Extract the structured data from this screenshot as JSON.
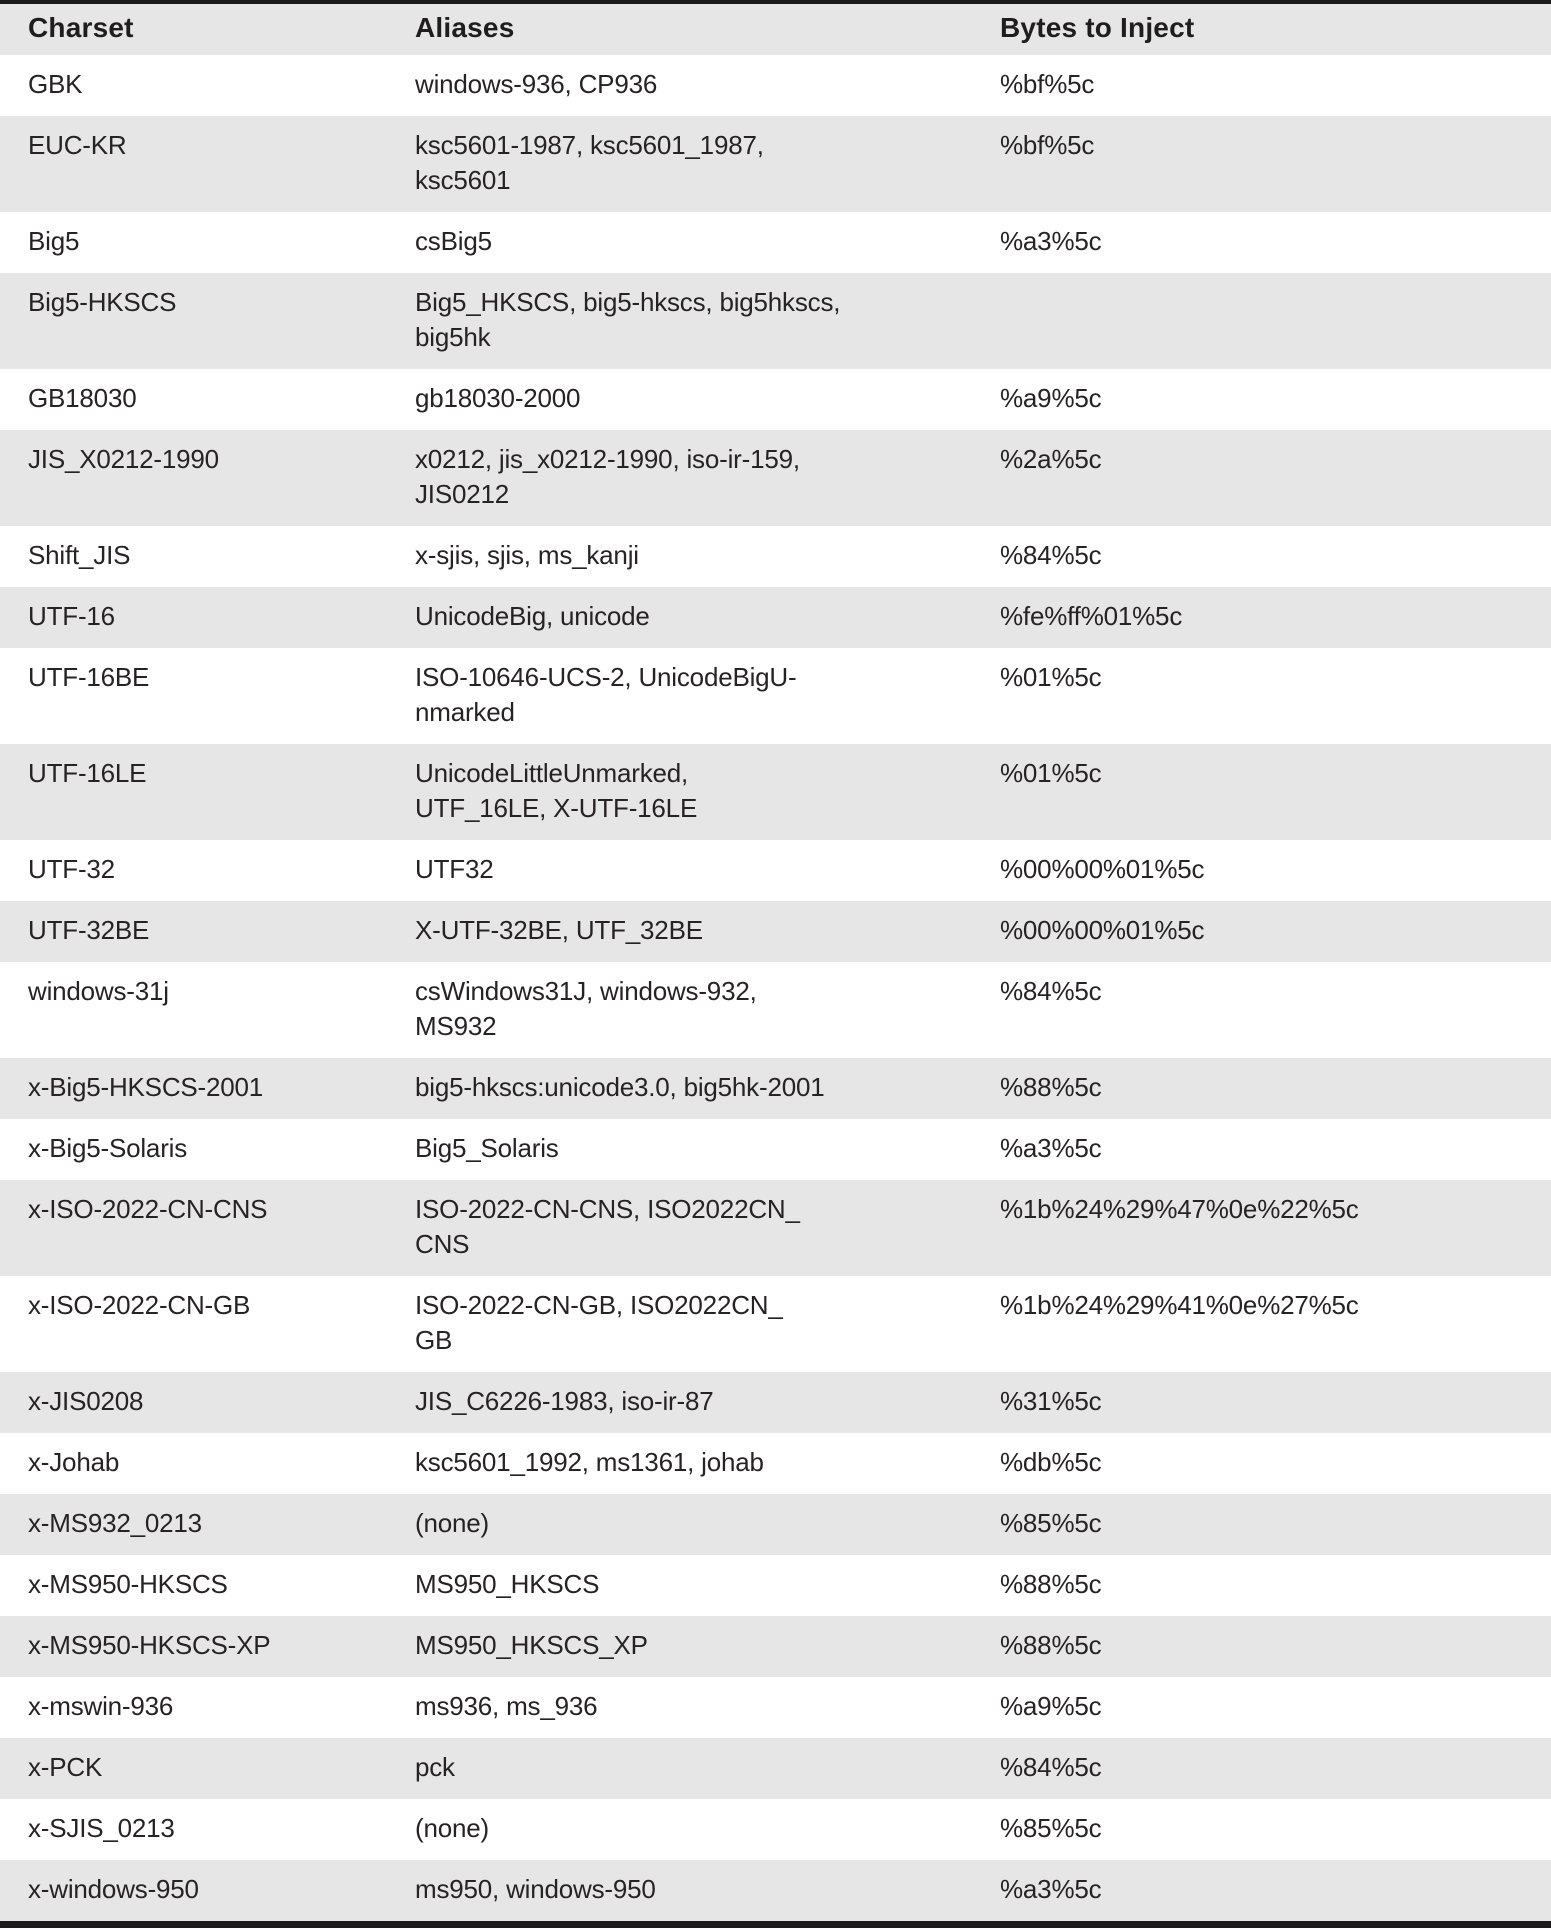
{
  "page": {
    "background": "#ffffff",
    "band_bg": "#e6e6e6",
    "rule_color": "#1c1a1b",
    "text_color": "#272325"
  },
  "table": {
    "columns": [
      "Charset",
      "Aliases",
      "Bytes to Inject"
    ],
    "rows": [
      {
        "charset": "GBK",
        "aliases": "windows-936, CP936",
        "bytes": "%bf%5c"
      },
      {
        "charset": "EUC-KR",
        "aliases": "ksc5601-1987, ksc5601_1987,\nksc5601",
        "bytes": "%bf%5c"
      },
      {
        "charset": "Big5",
        "aliases": "csBig5",
        "bytes": "%a3%5c"
      },
      {
        "charset": "Big5-HKSCS",
        "aliases": "Big5_HKSCS, big5-hkscs, big5hkscs,\nbig5hk",
        "bytes": ""
      },
      {
        "charset": "GB18030",
        "aliases": "gb18030-2000",
        "bytes": "%a9%5c"
      },
      {
        "charset": "JIS_X0212-1990",
        "aliases": "x0212, jis_x0212-1990, iso-ir-159,\nJIS0212",
        "bytes": "%2a%5c"
      },
      {
        "charset": "Shift_JIS",
        "aliases": "x-sjis, sjis, ms_kanji",
        "bytes": "%84%5c"
      },
      {
        "charset": "UTF-16",
        "aliases": "UnicodeBig, unicode",
        "bytes": "%fe%ff%01%5c"
      },
      {
        "charset": "UTF-16BE",
        "aliases": "ISO-10646-UCS-2, UnicodeBigU-\nnmarked",
        "bytes": "%01%5c"
      },
      {
        "charset": "UTF-16LE",
        "aliases": "UnicodeLittleUnmarked,\nUTF_16LE, X-UTF-16LE",
        "bytes": "%01%5c"
      },
      {
        "charset": "UTF-32",
        "aliases": "UTF32",
        "bytes": "%00%00%01%5c"
      },
      {
        "charset": "UTF-32BE",
        "aliases": "X-UTF-32BE, UTF_32BE",
        "bytes": "%00%00%01%5c"
      },
      {
        "charset": "windows-31j",
        "aliases": "csWindows31J, windows-932,\nMS932",
        "bytes": "%84%5c"
      },
      {
        "charset": "x-Big5-HKSCS-2001",
        "aliases": "big5-hkscs:unicode3.0, big5hk-2001",
        "bytes": "%88%5c"
      },
      {
        "charset": "x-Big5-Solaris",
        "aliases": "Big5_Solaris",
        "bytes": "%a3%5c"
      },
      {
        "charset": "x-ISO-2022-CN-CNS",
        "aliases": "ISO-2022-CN-CNS, ISO2022CN_\nCNS",
        "bytes": "%1b%24%29%47%0e%22%5c"
      },
      {
        "charset": "x-ISO-2022-CN-GB",
        "aliases": "ISO-2022-CN-GB, ISO2022CN_\nGB",
        "bytes": "%1b%24%29%41%0e%27%5c"
      },
      {
        "charset": "x-JIS0208",
        "aliases": "JIS_C6226-1983, iso-ir-87",
        "bytes": "%31%5c"
      },
      {
        "charset": "x-Johab",
        "aliases": "ksc5601_1992, ms1361, johab",
        "bytes": "%db%5c"
      },
      {
        "charset": "x-MS932_0213",
        "aliases": "(none)",
        "bytes": "%85%5c"
      },
      {
        "charset": "x-MS950-HKSCS",
        "aliases": "MS950_HKSCS",
        "bytes": "%88%5c"
      },
      {
        "charset": "x-MS950-HKSCS-XP",
        "aliases": "MS950_HKSCS_XP",
        "bytes": "%88%5c"
      },
      {
        "charset": "x-mswin-936",
        "aliases": "ms936, ms_936",
        "bytes": "%a9%5c"
      },
      {
        "charset": "x-PCK",
        "aliases": "pck",
        "bytes": "%84%5c"
      },
      {
        "charset": "x-SJIS_0213",
        "aliases": "(none)",
        "bytes": "%85%5c"
      },
      {
        "charset": "x-windows-950",
        "aliases": "ms950, windows-950",
        "bytes": "%a3%5c"
      }
    ]
  }
}
